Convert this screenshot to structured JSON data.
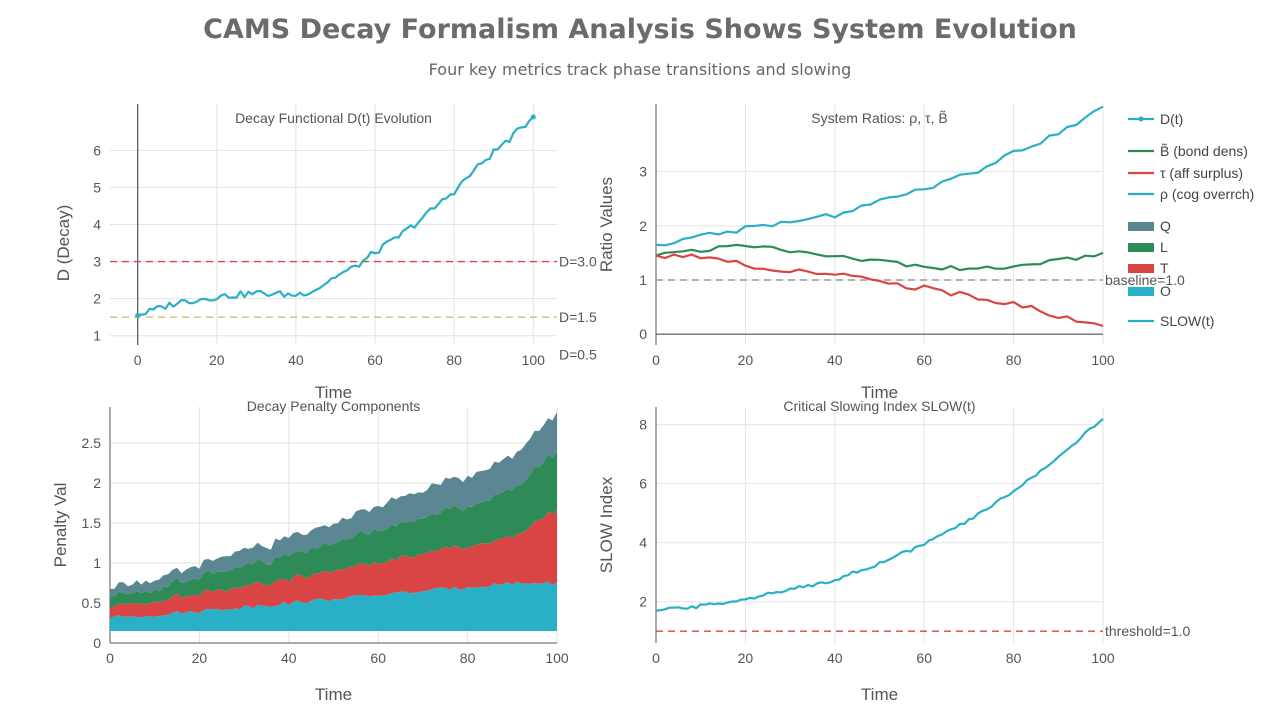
{
  "title": "CAMS Decay Formalism Analysis Shows System Evolution",
  "subtitle": "Four key metrics track phase transitions and slowing",
  "colors": {
    "cyan": "#2ab0c6",
    "green": "#2e8b57",
    "red": "#d94545",
    "slate": "#5a8791",
    "gold": "#d2c06a",
    "grid": "#e3e3e3",
    "axis": "#555555",
    "grey_dash": "#999999",
    "red_dash": "#d94545"
  },
  "chart_data": [
    {
      "id": "decay",
      "type": "line",
      "title": "Decay Functional D(t) Evolution",
      "xlabel": "Time",
      "ylabel": "D (Decay)",
      "xlim": [
        -7,
        106
      ],
      "ylim": [
        0.75,
        7.25
      ],
      "xticks": [
        0,
        20,
        40,
        60,
        80,
        100
      ],
      "yticks": [
        1,
        2,
        3,
        4,
        5,
        6
      ],
      "series": [
        {
          "key": "d",
          "color": "cyan",
          "x": [
            0,
            10,
            20,
            30,
            40,
            45,
            50,
            55,
            60,
            65,
            70,
            75,
            80,
            85,
            90,
            95,
            100
          ],
          "y": [
            1.55,
            1.9,
            2.05,
            2.15,
            2.1,
            2.25,
            2.6,
            2.85,
            3.25,
            3.6,
            4.0,
            4.45,
            4.9,
            5.45,
            5.95,
            6.4,
            6.9
          ]
        }
      ],
      "hlines": [
        {
          "y": 3.0,
          "label": "D=3.0",
          "color": "red_dash"
        },
        {
          "y": 1.5,
          "label": "D=1.5",
          "color": "gold"
        },
        {
          "y": 0.5,
          "label": "D=0.5",
          "color": "none"
        }
      ]
    },
    {
      "id": "ratios",
      "type": "line",
      "title": "System Ratios: ρ, τ, B̃",
      "xlabel": "Time",
      "ylabel": "Ratio Values",
      "xlim": [
        0,
        100
      ],
      "ylim": [
        -0.2,
        4.25
      ],
      "xticks": [
        0,
        20,
        40,
        60,
        80,
        100
      ],
      "yticks": [
        0,
        1,
        2,
        3
      ],
      "series": [
        {
          "key": "rho",
          "color": "cyan",
          "x": [
            0,
            10,
            20,
            30,
            40,
            50,
            60,
            70,
            80,
            90,
            100
          ],
          "y": [
            1.65,
            1.8,
            1.95,
            2.05,
            2.2,
            2.45,
            2.7,
            2.95,
            3.35,
            3.7,
            4.2
          ]
        },
        {
          "key": "bond",
          "color": "green",
          "x": [
            0,
            10,
            20,
            25,
            30,
            40,
            50,
            60,
            70,
            80,
            90,
            100
          ],
          "y": [
            1.45,
            1.55,
            1.65,
            1.6,
            1.55,
            1.45,
            1.35,
            1.25,
            1.2,
            1.25,
            1.35,
            1.5
          ]
        },
        {
          "key": "tau",
          "color": "red",
          "x": [
            0,
            10,
            20,
            30,
            40,
            50,
            60,
            70,
            80,
            90,
            100
          ],
          "y": [
            1.45,
            1.4,
            1.3,
            1.15,
            1.1,
            0.95,
            0.85,
            0.7,
            0.55,
            0.35,
            0.15
          ]
        }
      ],
      "hlines": [
        {
          "y": 1.0,
          "label": "baseline=1.0",
          "color": "grey_dash"
        }
      ]
    },
    {
      "id": "penalty",
      "type": "area",
      "title": "Decay Penalty Components",
      "xlabel": "Time",
      "ylabel": "Penalty Val",
      "xlim": [
        0,
        100
      ],
      "ylim": [
        0,
        2.95
      ],
      "xticks": [
        0,
        20,
        40,
        60,
        80,
        100
      ],
      "yticks": [
        0,
        0.5,
        1,
        1.5,
        2,
        2.5
      ],
      "x": [
        0,
        10,
        20,
        30,
        40,
        50,
        60,
        70,
        80,
        90,
        100
      ],
      "series": [
        {
          "key": "O",
          "color": "cyan",
          "values": [
            0.17,
            0.2,
            0.25,
            0.3,
            0.35,
            0.4,
            0.45,
            0.5,
            0.55,
            0.6,
            0.6
          ]
        },
        {
          "key": "T",
          "color": "red",
          "values": [
            0.12,
            0.17,
            0.22,
            0.27,
            0.3,
            0.35,
            0.4,
            0.46,
            0.52,
            0.58,
            0.93
          ]
        },
        {
          "key": "L",
          "color": "green",
          "values": [
            0.12,
            0.15,
            0.2,
            0.25,
            0.3,
            0.35,
            0.4,
            0.45,
            0.5,
            0.6,
            0.72
          ]
        },
        {
          "key": "Q",
          "color": "slate",
          "values": [
            0.1,
            0.13,
            0.15,
            0.2,
            0.22,
            0.25,
            0.3,
            0.35,
            0.38,
            0.42,
            0.48
          ]
        }
      ]
    },
    {
      "id": "slow",
      "type": "line",
      "title": "Critical Slowing Index SLOW(t)",
      "xlabel": "Time",
      "ylabel": "SLOW Index",
      "xlim": [
        0,
        100
      ],
      "ylim": [
        0.6,
        8.6
      ],
      "xticks": [
        0,
        20,
        40,
        60,
        80,
        100
      ],
      "yticks": [
        2,
        4,
        6,
        8
      ],
      "series": [
        {
          "key": "slow",
          "color": "cyan",
          "x": [
            0,
            10,
            20,
            30,
            40,
            50,
            60,
            70,
            80,
            90,
            100
          ],
          "y": [
            1.7,
            1.85,
            2.1,
            2.4,
            2.75,
            3.3,
            3.95,
            4.75,
            5.75,
            6.9,
            8.2
          ]
        }
      ],
      "hlines": [
        {
          "y": 1.0,
          "label": "threshold=1.0",
          "color": "red_dash"
        }
      ]
    }
  ],
  "legend": {
    "items": [
      {
        "label": "D(t)",
        "color": "cyan",
        "kind": "line-marker"
      },
      {
        "label": "B̃ (bond dens)",
        "color": "green",
        "kind": "line"
      },
      {
        "label": "τ (aff surplus)",
        "color": "red",
        "kind": "line"
      },
      {
        "label": "ρ (cog overrch)",
        "color": "cyan",
        "kind": "line"
      },
      {
        "label": "Q",
        "color": "slate",
        "kind": "patch"
      },
      {
        "label": "L",
        "color": "green",
        "kind": "patch"
      },
      {
        "label": "T",
        "color": "red",
        "kind": "patch"
      },
      {
        "label": "O",
        "color": "cyan",
        "kind": "patch"
      },
      {
        "label": "SLOW(t)",
        "color": "cyan",
        "kind": "line"
      }
    ]
  }
}
